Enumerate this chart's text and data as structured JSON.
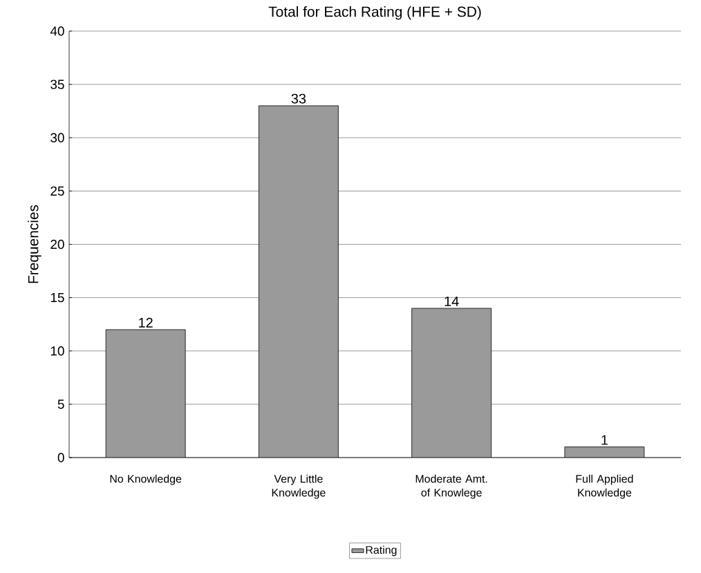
{
  "chart_data": {
    "type": "bar",
    "title": "Total for Each Rating (HFE + SD)",
    "ylabel": "Frequencies",
    "categories": [
      "No Knowledge",
      "Very Little Knowledge",
      "Moderate Amt. of Knowlege",
      "Full Applied Knowledge"
    ],
    "series": [
      {
        "name": "Rating",
        "color": "#9a9a9a",
        "values": [
          12,
          33,
          14,
          1
        ]
      }
    ],
    "ylim": [
      0,
      40
    ],
    "yticks": [
      0,
      5,
      10,
      15,
      20,
      25,
      30,
      35,
      40
    ],
    "grid": "y",
    "legend": "bottom",
    "data_labels": true
  }
}
